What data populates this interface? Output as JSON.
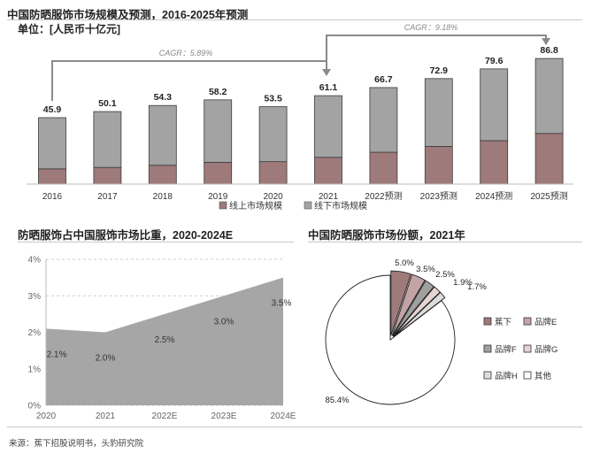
{
  "top": {
    "title": "中国防晒服饰市场规模及预测，2016-2025年预测",
    "unit": "单位：[人民币十亿元]",
    "cagr_left": "CAGR：5.89%",
    "cagr_right": "CAGR：9.18%"
  },
  "bottom_left": {
    "title": "防晒服饰占中国服饰市场比重，2020-2024E"
  },
  "bottom_right": {
    "title": "中国防晒服饰市场份额，2021年"
  },
  "source": "来源：蕉下招股说明书，头豹研究院",
  "colors": {
    "online": "#9f7a7a",
    "offline": "#a3a3a3",
    "area": "#a6a6a6",
    "pie_jiaoxia": "#9f7a7a",
    "pie_e": "#c3a3a3",
    "pie_f": "#a0a0a0",
    "pie_g": "#e7d3d3",
    "pie_h": "#dddddd",
    "pie_other": "#ffffff"
  },
  "chart_data": [
    {
      "type": "bar",
      "stacked": true,
      "categories": [
        "2016",
        "2017",
        "2018",
        "2019",
        "2020",
        "2021",
        "2022预测",
        "2023预测",
        "2024预测",
        "2025预测"
      ],
      "totals": [
        45.9,
        50.1,
        54.3,
        58.2,
        53.5,
        61.1,
        66.7,
        72.9,
        79.6,
        86.8
      ],
      "total_labels": [
        "45.9",
        "50.1",
        "54.3",
        "58.2",
        "53.5",
        "61.1",
        "66.7",
        "72.9",
        "79.6",
        "86.8"
      ],
      "series": [
        {
          "name": "线上市场规模",
          "values": [
            10.5,
            11.5,
            13.0,
            15.0,
            15.5,
            18.5,
            22.0,
            26.0,
            30.0,
            35.0
          ]
        },
        {
          "name": "线下市场规模",
          "values": [
            35.4,
            38.6,
            41.3,
            43.2,
            38.0,
            42.6,
            44.7,
            46.9,
            49.6,
            51.8
          ]
        }
      ],
      "ylim": [
        0,
        90
      ],
      "legend": "bottom"
    },
    {
      "type": "area",
      "x": [
        "2020",
        "2021",
        "2022E",
        "2023E",
        "2024E"
      ],
      "values": [
        2.1,
        2.0,
        2.5,
        3.0,
        3.5
      ],
      "value_labels": [
        "2.1%",
        "2.0%",
        "2.5%",
        "3.0%",
        "3.5%"
      ],
      "ylim": [
        0,
        4
      ],
      "yticks": [
        0,
        1,
        2,
        3,
        4
      ],
      "ytick_labels": [
        "0%",
        "1%",
        "2%",
        "3%",
        "4%"
      ],
      "grid": true
    },
    {
      "type": "pie",
      "slices": [
        {
          "name": "蕉下",
          "value": 5.0,
          "label": "5.0%"
        },
        {
          "name": "品牌E",
          "value": 3.5,
          "label": "3.5%"
        },
        {
          "name": "品牌F",
          "value": 2.5,
          "label": "2.5%"
        },
        {
          "name": "品牌G",
          "value": 1.9,
          "label": "1.9%"
        },
        {
          "name": "品牌H",
          "value": 1.7,
          "label": "1.7%"
        },
        {
          "name": "其他",
          "value": 85.4,
          "label": "85.4%"
        }
      ],
      "legend": "right"
    }
  ]
}
